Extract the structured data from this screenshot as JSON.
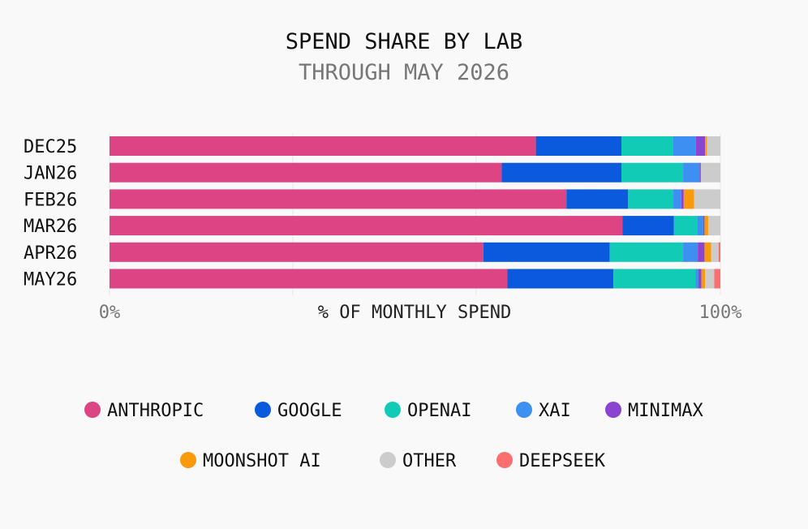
{
  "chart_data": {
    "type": "bar",
    "orientation": "horizontal",
    "stacked": true,
    "title": "SPEND SHARE BY LAB",
    "subtitle": "THROUGH MAY 2026",
    "xlabel": "% OF MONTHLY SPEND",
    "ylabel": "",
    "xlim": [
      0,
      100
    ],
    "x_ticks": [
      "0%",
      "100%"
    ],
    "grid": true,
    "legend_position": "bottom",
    "categories": [
      "DEC25",
      "JAN26",
      "FEB26",
      "MAR26",
      "APR26",
      "MAY26"
    ],
    "series": [
      {
        "name": "ANTHROPIC",
        "color": "#dc4483",
        "values": [
          69.8,
          64.2,
          74.8,
          84.0,
          61.2,
          65.1
        ]
      },
      {
        "name": "GOOGLE",
        "color": "#0b59dd",
        "values": [
          14.0,
          19.6,
          10.1,
          8.4,
          20.7,
          17.4
        ]
      },
      {
        "name": "OPENAI",
        "color": "#12cbb7",
        "values": [
          8.4,
          10.1,
          7.4,
          3.8,
          12.0,
          13.4
        ]
      },
      {
        "name": "XAI",
        "color": "#3d8ff2",
        "values": [
          3.8,
          2.7,
          1.3,
          1.0,
          2.4,
          0.5
        ]
      },
      {
        "name": "MINIMAX",
        "color": "#8a44d0",
        "values": [
          1.5,
          0.2,
          0.4,
          0.2,
          1.1,
          0.5
        ]
      },
      {
        "name": "MOONSHOT AI",
        "color": "#f89a0b",
        "values": [
          0.3,
          0.0,
          1.7,
          0.6,
          1.1,
          0.6
        ]
      },
      {
        "name": "OTHER",
        "color": "#cccccc",
        "values": [
          2.2,
          3.2,
          4.3,
          2.0,
          1.2,
          1.5
        ]
      },
      {
        "name": "DEEPSEEK",
        "color": "#fb706e",
        "values": [
          0.0,
          0.0,
          0.0,
          0.0,
          0.3,
          1.0
        ]
      }
    ]
  }
}
